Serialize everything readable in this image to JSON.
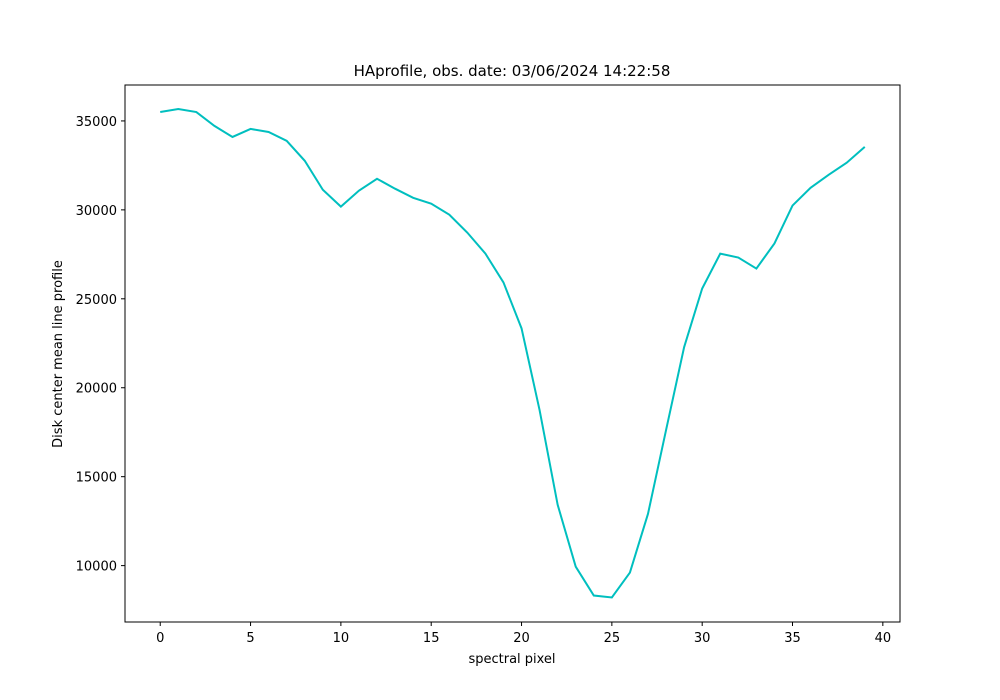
{
  "chart_data": {
    "type": "line",
    "title": "HAprofile, obs. date: 03/06/2024 14:22:58",
    "x_label": "spectral pixel",
    "y_label": "Disk center mean line profile",
    "x": [
      0,
      1,
      2,
      3,
      4,
      5,
      6,
      7,
      8,
      9,
      10,
      11,
      12,
      13,
      14,
      15,
      16,
      17,
      18,
      19,
      20,
      21,
      22,
      23,
      24,
      25,
      26,
      27,
      28,
      29,
      30,
      31,
      32,
      33,
      34,
      35,
      36,
      37,
      38,
      39
    ],
    "series": [
      {
        "color": "#00bfbf",
        "values": [
          35500,
          35670,
          35500,
          34720,
          34100,
          34550,
          34380,
          33880,
          32760,
          31130,
          30180,
          31080,
          31750,
          31190,
          30680,
          30350,
          29730,
          28720,
          27540,
          25920,
          23340,
          18740,
          13420,
          9940,
          8320,
          8210,
          9610,
          12910,
          17620,
          22280,
          25580,
          27540,
          27320,
          26700,
          28110,
          30240,
          31240,
          31970,
          32650,
          33540
        ]
      }
    ],
    "xlim": [
      -1.95,
      40.95
    ],
    "ylim": [
      6830,
      37020
    ],
    "xticks": [
      0,
      5,
      10,
      15,
      20,
      25,
      30,
      35,
      40
    ],
    "yticks": [
      10000,
      15000,
      20000,
      25000,
      30000,
      35000
    ],
    "grid": false
  }
}
